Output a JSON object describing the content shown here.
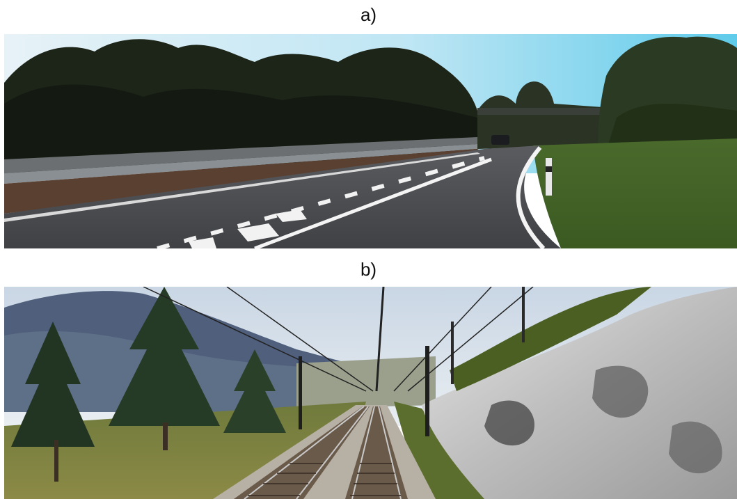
{
  "panels": [
    {
      "label": "a)",
      "scene": "road-scene"
    },
    {
      "label": "b)",
      "scene": "railway-scene"
    }
  ]
}
